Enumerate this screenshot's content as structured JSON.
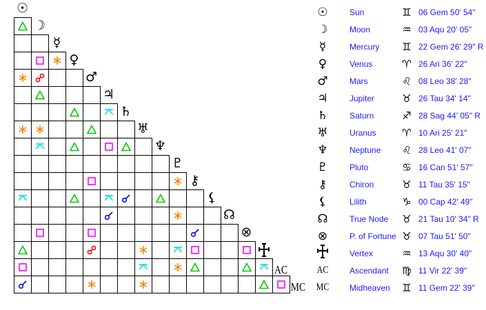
{
  "colors": {
    "trine": "#00cc00",
    "square": "#ff00ff",
    "sextile": "#ff8000",
    "opposition": "#ff0000",
    "quincunx": "#00e0e0",
    "conjunction": "#0000ff",
    "label": "#1a1aff"
  },
  "bodies": [
    {
      "icon": "sun-icon",
      "symbol": "☉",
      "name": "Sun",
      "sign_icon": "gemini-icon",
      "sign_symbol": "♊",
      "position": "06 Gem 50' 54\""
    },
    {
      "icon": "moon-icon",
      "symbol": "☽",
      "name": "Moon",
      "sign_icon": "aquarius-icon",
      "sign_symbol": "♒",
      "position": "03 Aqu 20' 05\""
    },
    {
      "icon": "mercury-icon",
      "symbol": "☿",
      "name": "Mercury",
      "sign_icon": "gemini-icon",
      "sign_symbol": "♊",
      "position": "22 Gem 26' 29\" R"
    },
    {
      "icon": "venus-icon",
      "symbol": "♀",
      "name": "Venus",
      "sign_icon": "aries-icon",
      "sign_symbol": "♈",
      "position": "26 Ari 36' 22\""
    },
    {
      "icon": "mars-icon",
      "symbol": "♂",
      "name": "Mars",
      "sign_icon": "leo-icon",
      "sign_symbol": "♌",
      "position": "08 Leo 38' 28\""
    },
    {
      "icon": "jupiter-icon",
      "symbol": "♃",
      "name": "Jupiter",
      "sign_icon": "taurus-icon",
      "sign_symbol": "♉",
      "position": "26 Tau 34' 14\""
    },
    {
      "icon": "saturn-icon",
      "symbol": "♄",
      "name": "Saturn",
      "sign_icon": "sagittarius-icon",
      "sign_symbol": "♐",
      "position": "28 Sag 44' 05\" R"
    },
    {
      "icon": "uranus-icon",
      "symbol": "♅",
      "name": "Uranus",
      "sign_icon": "aries-icon",
      "sign_symbol": "♈",
      "position": "10 Ari 25' 21\""
    },
    {
      "icon": "neptune-icon",
      "symbol": "♆",
      "name": "Neptune",
      "sign_icon": "leo-icon",
      "sign_symbol": "♌",
      "position": "28 Leo 41' 07\""
    },
    {
      "icon": "pluto-icon",
      "symbol": "♇",
      "name": "Pluto",
      "sign_icon": "cancer-icon",
      "sign_symbol": "♋",
      "position": "16 Can 51' 57\""
    },
    {
      "icon": "chiron-icon",
      "symbol": "⚷",
      "name": "Chiron",
      "sign_icon": "taurus-icon",
      "sign_symbol": "♉",
      "position": "11 Tau 35' 15\""
    },
    {
      "icon": "lilith-icon",
      "symbol": "⚸",
      "name": "Lilith",
      "sign_icon": "capricorn-icon",
      "sign_symbol": "♑",
      "position": "00 Cap 42' 49\""
    },
    {
      "icon": "true-node-icon",
      "symbol": "☊",
      "name": "True Node",
      "sign_icon": "taurus-icon",
      "sign_symbol": "♉",
      "position": "21 Tau 10' 34\" R"
    },
    {
      "icon": "part-of-fortune-icon",
      "symbol": "⊗",
      "name": "P. of Fortune",
      "sign_icon": "taurus-icon",
      "sign_symbol": "♉",
      "position": "07 Tau 51' 50\""
    },
    {
      "icon": "vertex-icon",
      "symbol": "",
      "name": "Vertex",
      "sign_icon": "aquarius-icon",
      "sign_symbol": "♒",
      "position": "13 Aqu 30' 40\""
    },
    {
      "icon": "ascendant-icon",
      "symbol": "AC",
      "name": "Ascendant",
      "sign_icon": "virgo-icon",
      "sign_symbol": "♍",
      "position": "11 Vir 22' 39\""
    },
    {
      "icon": "midheaven-icon",
      "symbol": "MC",
      "name": "Midheaven",
      "sign_icon": "gemini-icon",
      "sign_symbol": "♊",
      "position": "11 Gem 22' 39\""
    }
  ],
  "aspects": [
    {
      "a": "Moon",
      "b": "Sun",
      "type": "trine"
    },
    {
      "a": "Venus",
      "b": "Moon",
      "type": "square"
    },
    {
      "a": "Venus",
      "b": "Mercury",
      "type": "sextile"
    },
    {
      "a": "Mars",
      "b": "Sun",
      "type": "sextile"
    },
    {
      "a": "Mars",
      "b": "Moon",
      "type": "opposition"
    },
    {
      "a": "Jupiter",
      "b": "Moon",
      "type": "trine"
    },
    {
      "a": "Saturn",
      "b": "Venus",
      "type": "trine"
    },
    {
      "a": "Saturn",
      "b": "Jupiter",
      "type": "quincunx"
    },
    {
      "a": "Uranus",
      "b": "Sun",
      "type": "sextile"
    },
    {
      "a": "Uranus",
      "b": "Moon",
      "type": "sextile"
    },
    {
      "a": "Uranus",
      "b": "Mars",
      "type": "trine"
    },
    {
      "a": "Neptune",
      "b": "Moon",
      "type": "quincunx"
    },
    {
      "a": "Neptune",
      "b": "Venus",
      "type": "trine"
    },
    {
      "a": "Neptune",
      "b": "Jupiter",
      "type": "square"
    },
    {
      "a": "Neptune",
      "b": "Saturn",
      "type": "trine"
    },
    {
      "a": "Chiron",
      "b": "Mars",
      "type": "square"
    },
    {
      "a": "Chiron",
      "b": "Pluto",
      "type": "sextile"
    },
    {
      "a": "Lilith",
      "b": "Sun",
      "type": "quincunx"
    },
    {
      "a": "Lilith",
      "b": "Venus",
      "type": "trine"
    },
    {
      "a": "Lilith",
      "b": "Jupiter",
      "type": "quincunx"
    },
    {
      "a": "Lilith",
      "b": "Saturn",
      "type": "conjunction"
    },
    {
      "a": "Lilith",
      "b": "Neptune",
      "type": "trine"
    },
    {
      "a": "True Node",
      "b": "Jupiter",
      "type": "conjunction"
    },
    {
      "a": "True Node",
      "b": "Pluto",
      "type": "sextile"
    },
    {
      "a": "P. of Fortune",
      "b": "Moon",
      "type": "square"
    },
    {
      "a": "P. of Fortune",
      "b": "Mars",
      "type": "square"
    },
    {
      "a": "P. of Fortune",
      "b": "Chiron",
      "type": "conjunction"
    },
    {
      "a": "Vertex",
      "b": "Sun",
      "type": "trine"
    },
    {
      "a": "Vertex",
      "b": "Mars",
      "type": "opposition"
    },
    {
      "a": "Vertex",
      "b": "Uranus",
      "type": "sextile"
    },
    {
      "a": "Vertex",
      "b": "Pluto",
      "type": "quincunx"
    },
    {
      "a": "Vertex",
      "b": "Chiron",
      "type": "square"
    },
    {
      "a": "Vertex",
      "b": "P. of Fortune",
      "type": "square"
    },
    {
      "a": "Ascendant",
      "b": "Sun",
      "type": "square"
    },
    {
      "a": "Ascendant",
      "b": "Uranus",
      "type": "quincunx"
    },
    {
      "a": "Ascendant",
      "b": "Pluto",
      "type": "sextile"
    },
    {
      "a": "Ascendant",
      "b": "Chiron",
      "type": "trine"
    },
    {
      "a": "Ascendant",
      "b": "P. of Fortune",
      "type": "trine"
    },
    {
      "a": "Ascendant",
      "b": "Vertex",
      "type": "quincunx"
    },
    {
      "a": "Midheaven",
      "b": "Sun",
      "type": "conjunction"
    },
    {
      "a": "Midheaven",
      "b": "Mars",
      "type": "sextile"
    },
    {
      "a": "Midheaven",
      "b": "Uranus",
      "type": "sextile"
    },
    {
      "a": "Midheaven",
      "b": "Vertex",
      "type": "trine"
    },
    {
      "a": "Midheaven",
      "b": "Ascendant",
      "type": "square"
    }
  ]
}
